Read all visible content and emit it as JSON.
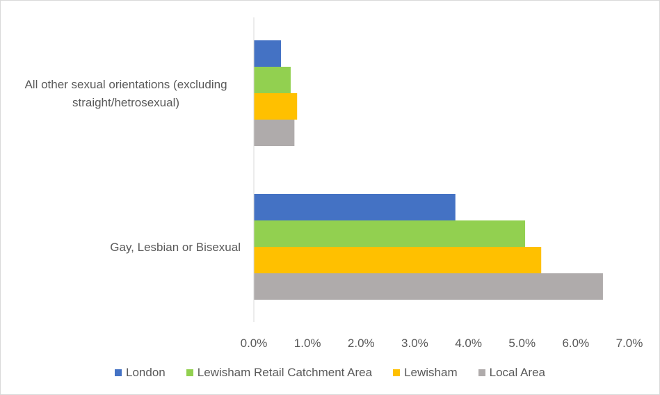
{
  "chart_data": {
    "type": "bar",
    "orientation": "horizontal",
    "categories": [
      "All other sexual orientations (excluding straight/hetrosexual)",
      "Gay, Lesbian or Bisexual"
    ],
    "category_lines": [
      [
        "All other sexual orientations (excluding",
        "straight/hetrosexual)"
      ],
      [
        "Gay, Lesbian or Bisexual"
      ]
    ],
    "series": [
      {
        "name": "London",
        "color": "#4472C4",
        "values": [
          0.5,
          3.75
        ]
      },
      {
        "name": "Lewisham Retail Catchment Area",
        "color": "#92D050",
        "values": [
          0.68,
          5.05
        ]
      },
      {
        "name": "Lewisham",
        "color": "#FFC000",
        "values": [
          0.8,
          5.35
        ]
      },
      {
        "name": "Local Area",
        "color": "#AFABAB",
        "values": [
          0.75,
          6.5
        ]
      }
    ],
    "xlim": [
      0,
      7
    ],
    "ticks": [
      "0.0%",
      "1.0%",
      "2.0%",
      "3.0%",
      "4.0%",
      "5.0%",
      "6.0%",
      "7.0%"
    ],
    "legend_position": "bottom",
    "grid": false,
    "title": "",
    "xlabel": "",
    "ylabel": ""
  }
}
